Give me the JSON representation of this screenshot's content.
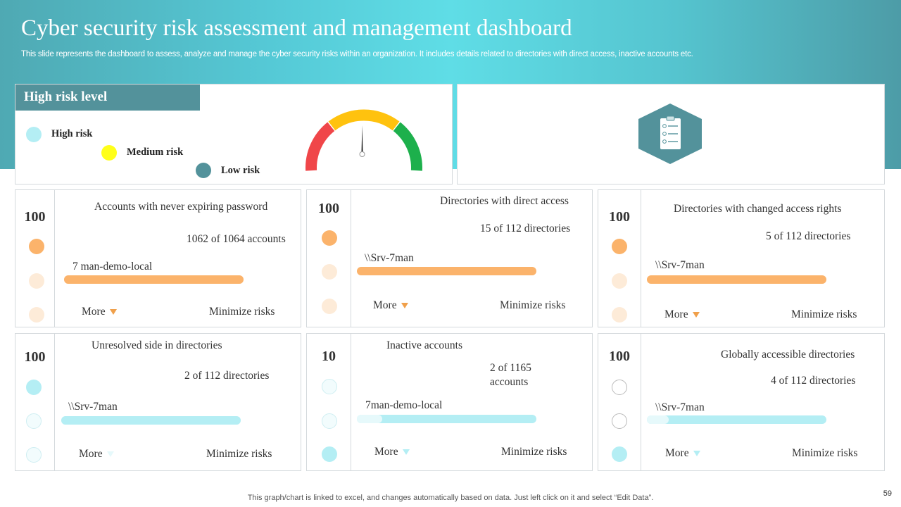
{
  "header": {
    "title": "Cyber security risk assessment and management dashboard",
    "subtitle": "This slide represents the dashboard to assess, analyze and manage the cyber security risks within an organization. It includes details related to directories with direct access, inactive accounts etc."
  },
  "risk_panel": {
    "heading": "High risk level",
    "legend": [
      {
        "label": "High risk",
        "color": "#b4eef4"
      },
      {
        "label": "Medium risk",
        "color": "#ffff1a"
      },
      {
        "label": "Low risk",
        "color": "#53929b"
      }
    ],
    "gauge": {
      "segments": [
        "#f04649",
        "#ffc20e",
        "#1db04c"
      ],
      "needle_value": 0.5
    }
  },
  "icon_panel": {
    "icon": "checklist-icon",
    "color": "#53929b"
  },
  "cards": [
    {
      "score": "100",
      "title": "Accounts with never expiring password",
      "count": "1062 of 1064 accounts",
      "server": "7 man-demo-local",
      "progress": 1.0,
      "more": "More",
      "action": "Minimize risks",
      "theme": "orange"
    },
    {
      "score": "100",
      "title": "Directories with direct access",
      "count": "15 of 112 directories",
      "server": "\\\\Srv-7man",
      "progress": 1.0,
      "more": "More",
      "action": "Minimize risks",
      "theme": "orange"
    },
    {
      "score": "100",
      "title": "Directories with changed access rights",
      "count": "5 of 112 directories",
      "server": "\\\\Srv-7man",
      "progress": 1.0,
      "more": "More",
      "action": "Minimize risks",
      "theme": "orange"
    },
    {
      "score": "100",
      "title": "Unresolved side in directories",
      "count": "2 of 112 directories",
      "server": "\\\\Srv-7man",
      "progress": 1.0,
      "more": "More",
      "action": "Minimize risks",
      "theme": "teal"
    },
    {
      "score": "10",
      "title": "Inactive accounts",
      "count": "2 of 1165 accounts",
      "server": "7man-demo-local",
      "progress": 0.14,
      "more": "More",
      "action": "Minimize risks",
      "theme": "teal"
    },
    {
      "score": "100",
      "title": "Globally accessible directories",
      "count": "4 of 112 directories",
      "server": "\\\\Srv-7man",
      "progress": 0.12,
      "more": "More",
      "action": "Minimize risks",
      "theme": "teal"
    }
  ],
  "colors": {
    "orange": "#fbb36b",
    "orange_light": "#fdebd8",
    "teal": "#b4eef4",
    "teal_light": "#e6f9fb",
    "teal_pale": "#f2fcfd"
  },
  "footer": {
    "note": "This graph/chart is linked to excel,  and changes automatically based on data. Just left click on it and select “Edit Data”.",
    "page_number": "59"
  }
}
